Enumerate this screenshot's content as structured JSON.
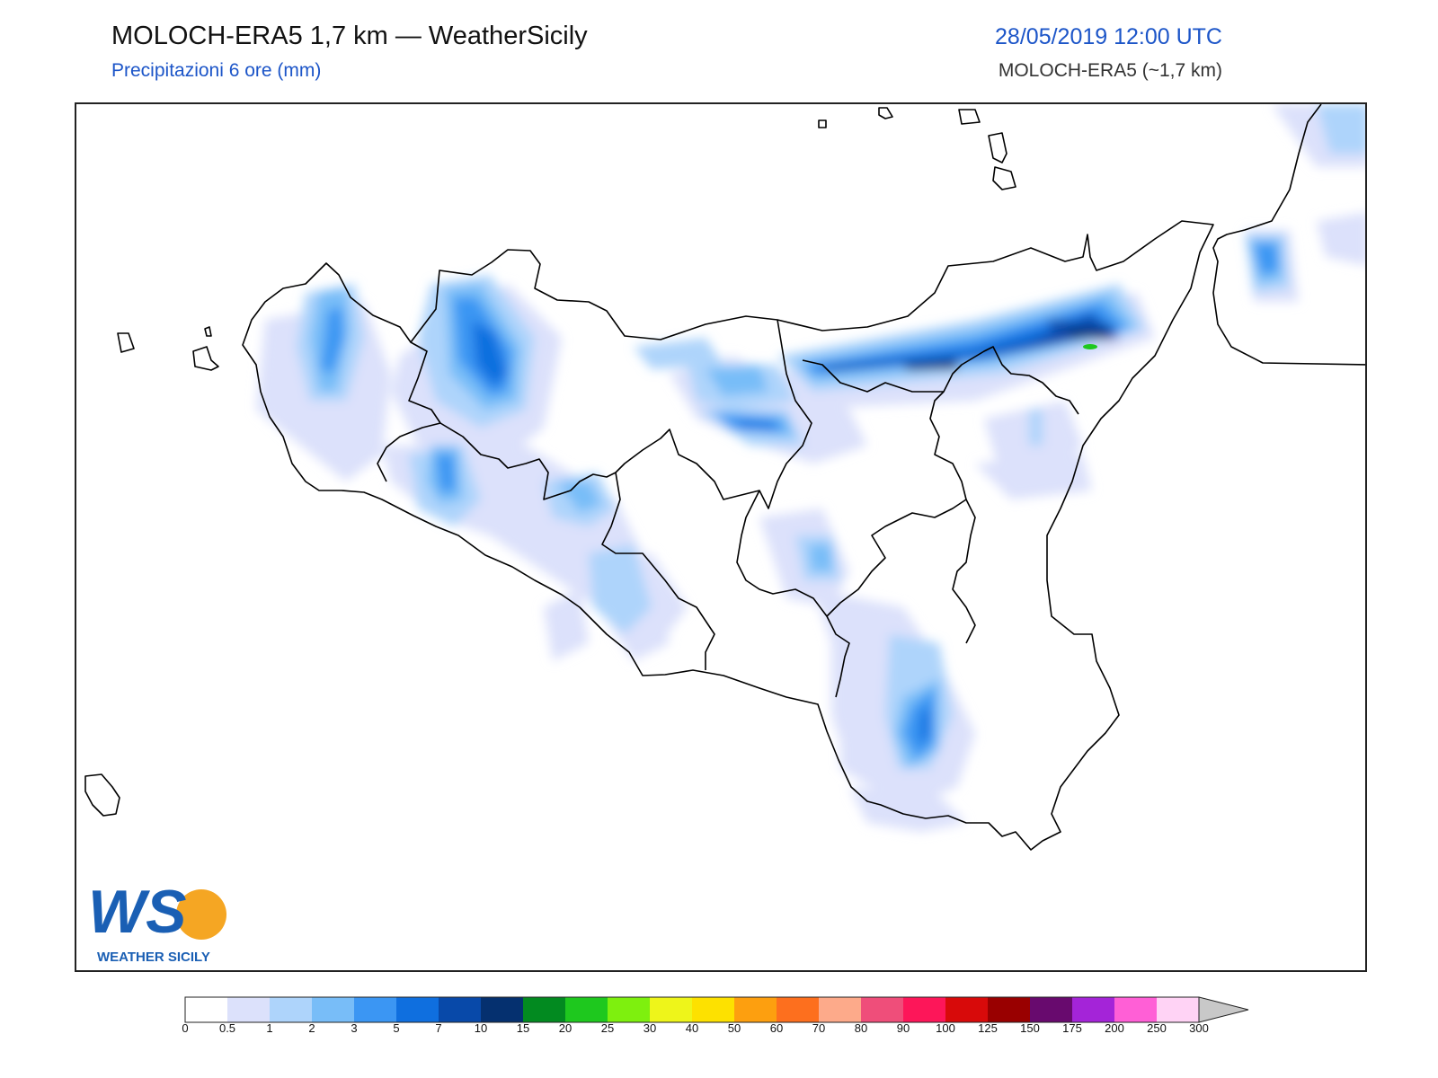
{
  "header": {
    "title": "MOLOCH-ERA5 1,7 km — WeatherSicily",
    "subtitle": "Precipitazioni 6 ore (mm)",
    "datetime": "28/05/2019 12:00 UTC",
    "model": "MOLOCH-ERA5 (~1,7 km)"
  },
  "logo": {
    "letters": "WS",
    "text": "WEATHER SICILY",
    "icon": "weather-sicily-logo"
  },
  "legend": {
    "ticks": [
      "0",
      "0.5",
      "1",
      "2",
      "3",
      "5",
      "7",
      "10",
      "15",
      "20",
      "25",
      "30",
      "40",
      "50",
      "60",
      "70",
      "80",
      "90",
      "100",
      "125",
      "150",
      "175",
      "200",
      "250",
      "300"
    ],
    "colors": [
      "#ffffff",
      "#dce1fb",
      "#aed4fb",
      "#78bdf8",
      "#3b96f3",
      "#0f6fdf",
      "#0849a9",
      "#05306f",
      "#028a20",
      "#1ec81e",
      "#7ef00e",
      "#eef51a",
      "#fde100",
      "#fd9f0f",
      "#fd6f1e",
      "#fdaa8a",
      "#ef4e7a",
      "#fd1659",
      "#d80a0a",
      "#990000",
      "#680a6e",
      "#a424d8",
      "#ff5fd6",
      "#ffd3f5"
    ],
    "overflow_color": "#c8c8c8"
  }
}
